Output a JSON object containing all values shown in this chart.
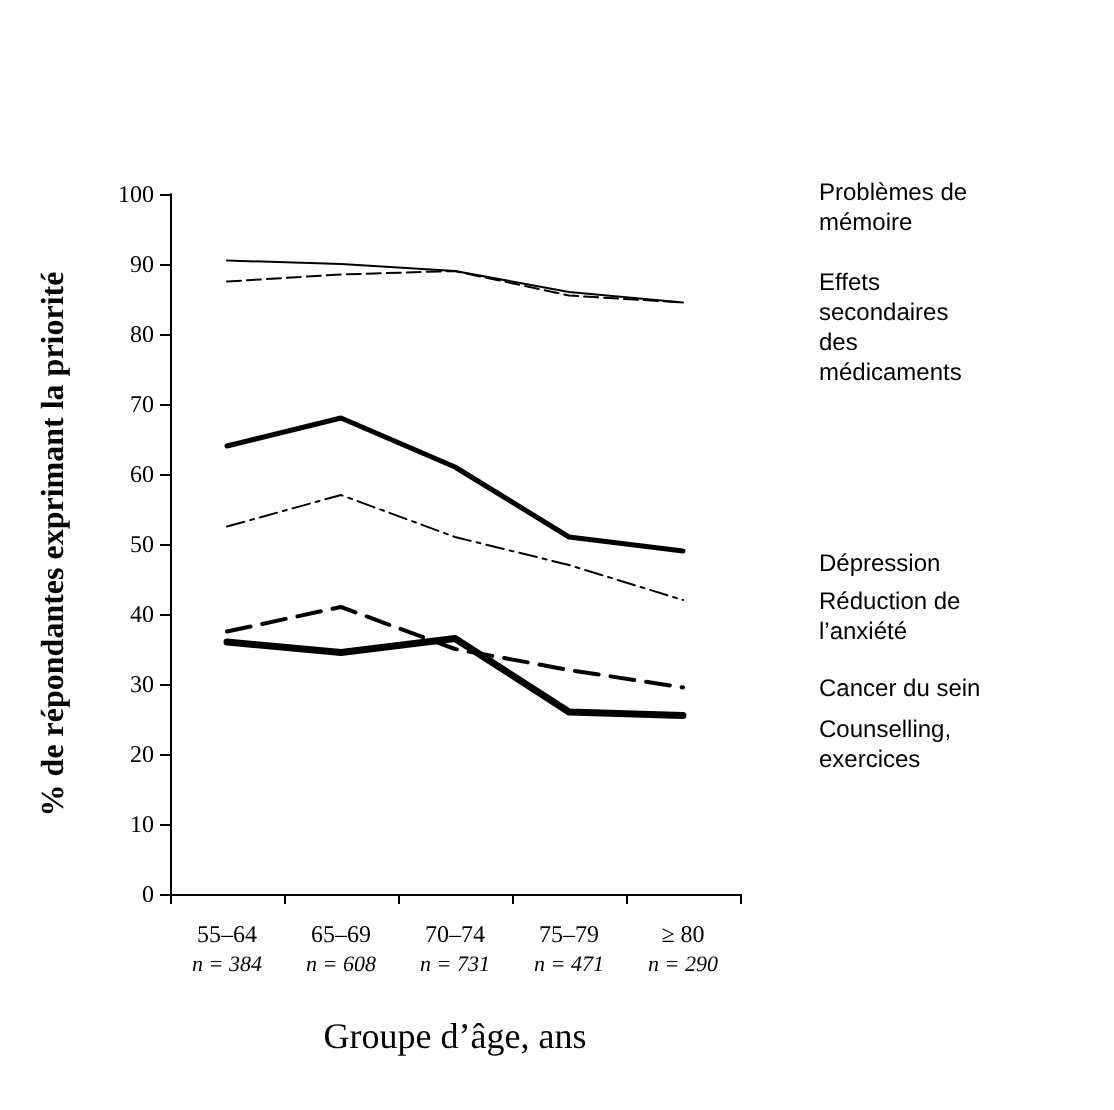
{
  "chart_data": {
    "type": "line",
    "xlabel": "Groupe d’âge, ans",
    "ylabel": "% de répondantes exprimant la priorité",
    "categories": [
      "55–64\nn = 384",
      "65–69\nn = 608",
      "70–74\nn = 731",
      "75–79\nn = 471",
      "≥ 80\nn = 290"
    ],
    "series": [
      {
        "name": "Problèmes de\nmémoire",
        "color": "#000000",
        "line_style": "solid",
        "values": [
          90.5,
          90,
          89,
          86,
          84.5
        ]
      },
      {
        "name": "Effets\nsecondaires\ndes\nmédicaments",
        "color": "#000000",
        "line_style": "dashed",
        "values": [
          87.5,
          88.5,
          89,
          85.5,
          84.5
        ]
      },
      {
        "name": "Dépression",
        "color": "#000000",
        "line_style": "solid",
        "values": [
          64,
          68,
          61,
          51,
          49
        ]
      },
      {
        "name": "Réduction de\nl’anxiété",
        "color": "#000000",
        "line_style": "dashed",
        "values": [
          52.5,
          57,
          51,
          47,
          42
        ]
      },
      {
        "name": "Cancer du sein",
        "color": "#000000",
        "line_style": "dashed",
        "values": [
          37.5,
          41,
          35,
          32,
          29.5
        ]
      },
      {
        "name": "Counselling,\nexercices",
        "color": "#000000",
        "line_style": "solid",
        "values": [
          36,
          34.5,
          36.5,
          26,
          25.5
        ]
      }
    ],
    "ylim": [
      0,
      100
    ],
    "yticks": [
      0,
      10,
      20,
      30,
      40,
      50,
      60,
      70,
      80,
      90,
      100
    ],
    "grid": false,
    "legend": false,
    "marker": "none"
  }
}
